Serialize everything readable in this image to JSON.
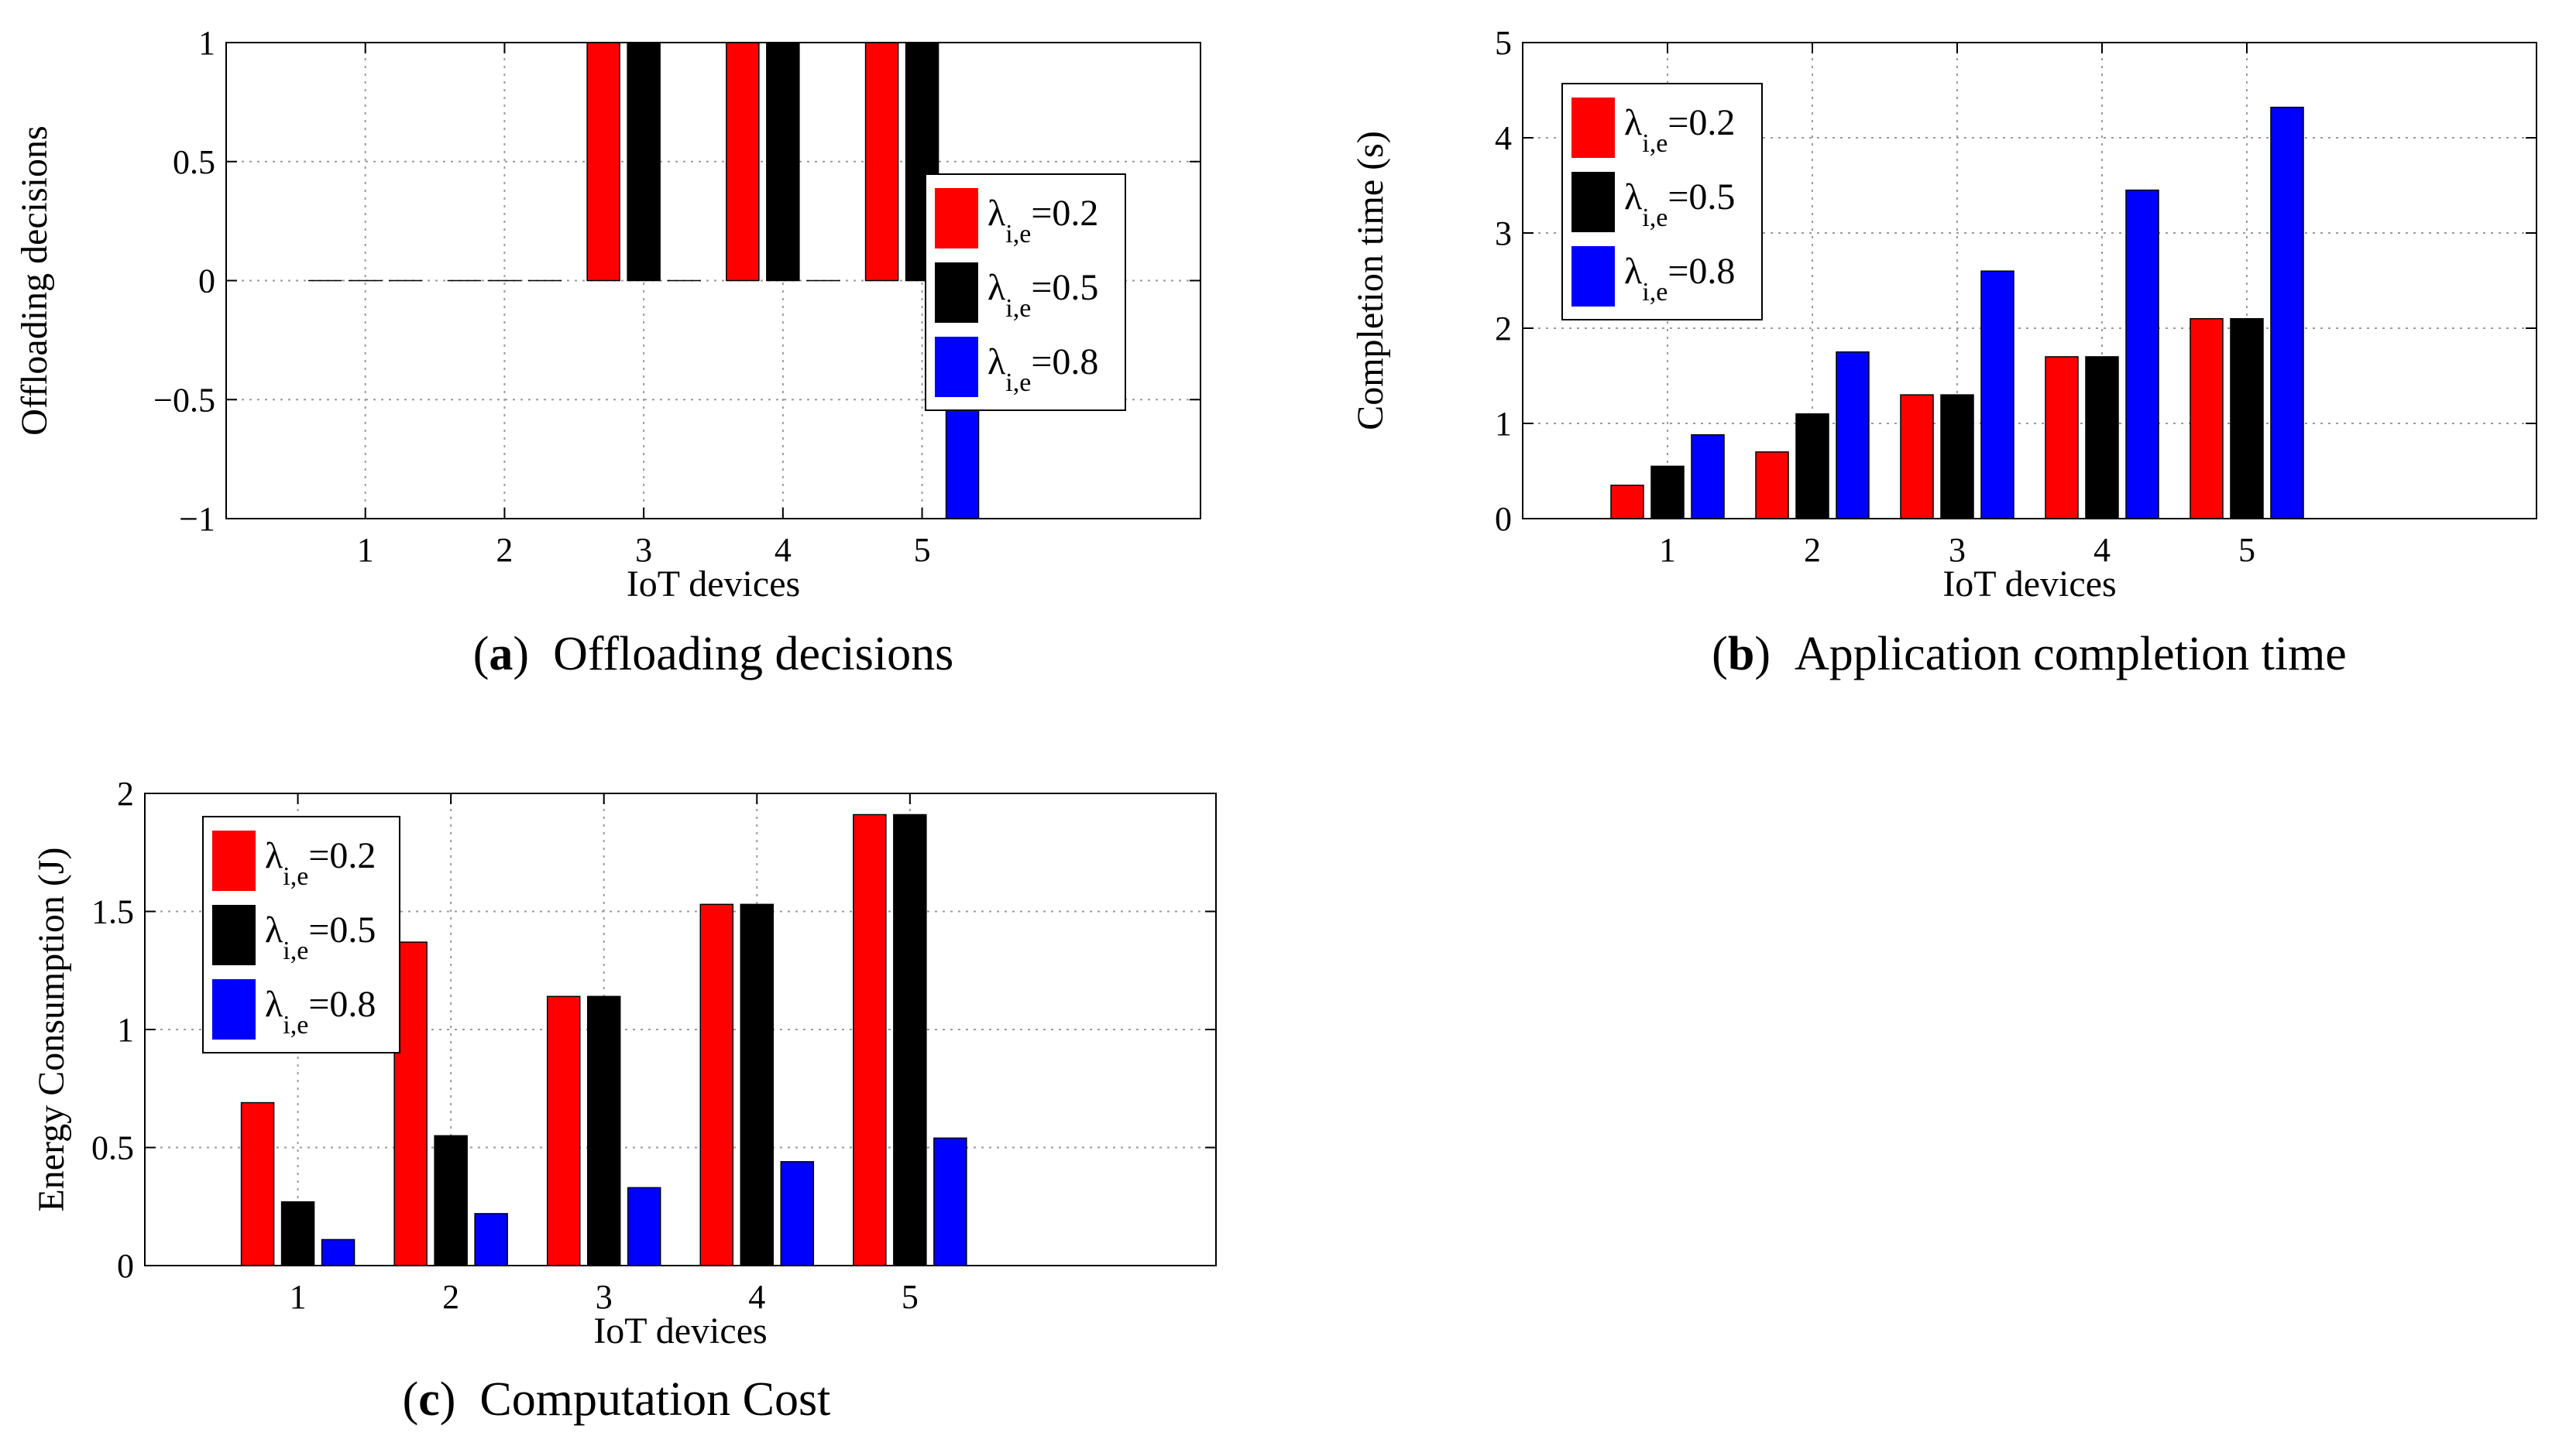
{
  "chart_data": [
    {
      "type": "bar",
      "panel": "a",
      "caption_letter": "a",
      "caption_text": "Offloading decisions",
      "xlabel": "IoT devices",
      "ylabel": "Offloading decisions",
      "categories": [
        "1",
        "2",
        "3",
        "4",
        "5"
      ],
      "ylim": [
        -1,
        1
      ],
      "yticks": [
        -1,
        -0.5,
        0,
        0.5,
        1
      ],
      "ytick_labels": [
        "−1",
        "−0.5",
        "0",
        "0.5",
        "1"
      ],
      "legend_position": "right",
      "series": [
        {
          "name": "λ_{i,e}=0.2",
          "symbol": "λ",
          "sub": "i,e",
          "suffix": "=0.2",
          "color": "#ff0000",
          "values": [
            0,
            0,
            1,
            1,
            1
          ]
        },
        {
          "name": "λ_{i,e}=0.5",
          "symbol": "λ",
          "sub": "i,e",
          "suffix": "=0.5",
          "color": "#000000",
          "values": [
            0,
            0,
            1,
            1,
            1
          ]
        },
        {
          "name": "λ_{i,e}=0.8",
          "symbol": "λ",
          "sub": "i,e",
          "suffix": "=0.8",
          "color": "#0000ff",
          "values": [
            0,
            0,
            0,
            0,
            -1
          ]
        }
      ]
    },
    {
      "type": "bar",
      "panel": "b",
      "caption_letter": "b",
      "caption_text": "Application completion time",
      "xlabel": "IoT devices",
      "ylabel": "Completion time (s)",
      "categories": [
        "1",
        "2",
        "3",
        "4",
        "5"
      ],
      "ylim": [
        0,
        5
      ],
      "yticks": [
        0,
        1,
        2,
        3,
        4,
        5
      ],
      "ytick_labels": [
        "0",
        "1",
        "2",
        "3",
        "4",
        "5"
      ],
      "legend_position": "top-left",
      "series": [
        {
          "name": "λ_{i,e}=0.2",
          "symbol": "λ",
          "sub": "i,e",
          "suffix": "=0.2",
          "color": "#ff0000",
          "values": [
            0.35,
            0.7,
            1.3,
            1.7,
            2.1
          ]
        },
        {
          "name": "λ_{i,e}=0.5",
          "symbol": "λ",
          "sub": "i,e",
          "suffix": "=0.5",
          "color": "#000000",
          "values": [
            0.55,
            1.1,
            1.3,
            1.7,
            2.1
          ]
        },
        {
          "name": "λ_{i,e}=0.8",
          "symbol": "λ",
          "sub": "i,e",
          "suffix": "=0.8",
          "color": "#0000ff",
          "values": [
            0.88,
            1.75,
            2.6,
            3.45,
            4.32
          ]
        }
      ]
    },
    {
      "type": "bar",
      "panel": "c",
      "caption_letter": "c",
      "caption_text": "Computation Cost",
      "xlabel": "IoT devices",
      "ylabel": "Energy Consumption (J)",
      "categories": [
        "1",
        "2",
        "3",
        "4",
        "5"
      ],
      "ylim": [
        0,
        2
      ],
      "yticks": [
        0,
        0.5,
        1,
        1.5,
        2
      ],
      "ytick_labels": [
        "0",
        "0.5",
        "1",
        "1.5",
        "2"
      ],
      "legend_position": "top-left",
      "series": [
        {
          "name": "λ_{i,e}=0.2",
          "symbol": "λ",
          "sub": "i,e",
          "suffix": "=0.2",
          "color": "#ff0000",
          "values": [
            0.69,
            1.37,
            1.14,
            1.53,
            1.91
          ]
        },
        {
          "name": "λ_{i,e}=0.5",
          "symbol": "λ",
          "sub": "i,e",
          "suffix": "=0.5",
          "color": "#000000",
          "values": [
            0.27,
            0.55,
            1.14,
            1.53,
            1.91
          ]
        },
        {
          "name": "λ_{i,e}=0.8",
          "symbol": "λ",
          "sub": "i,e",
          "suffix": "=0.8",
          "color": "#0000ff",
          "values": [
            0.11,
            0.22,
            0.33,
            0.44,
            0.54
          ]
        }
      ]
    }
  ]
}
